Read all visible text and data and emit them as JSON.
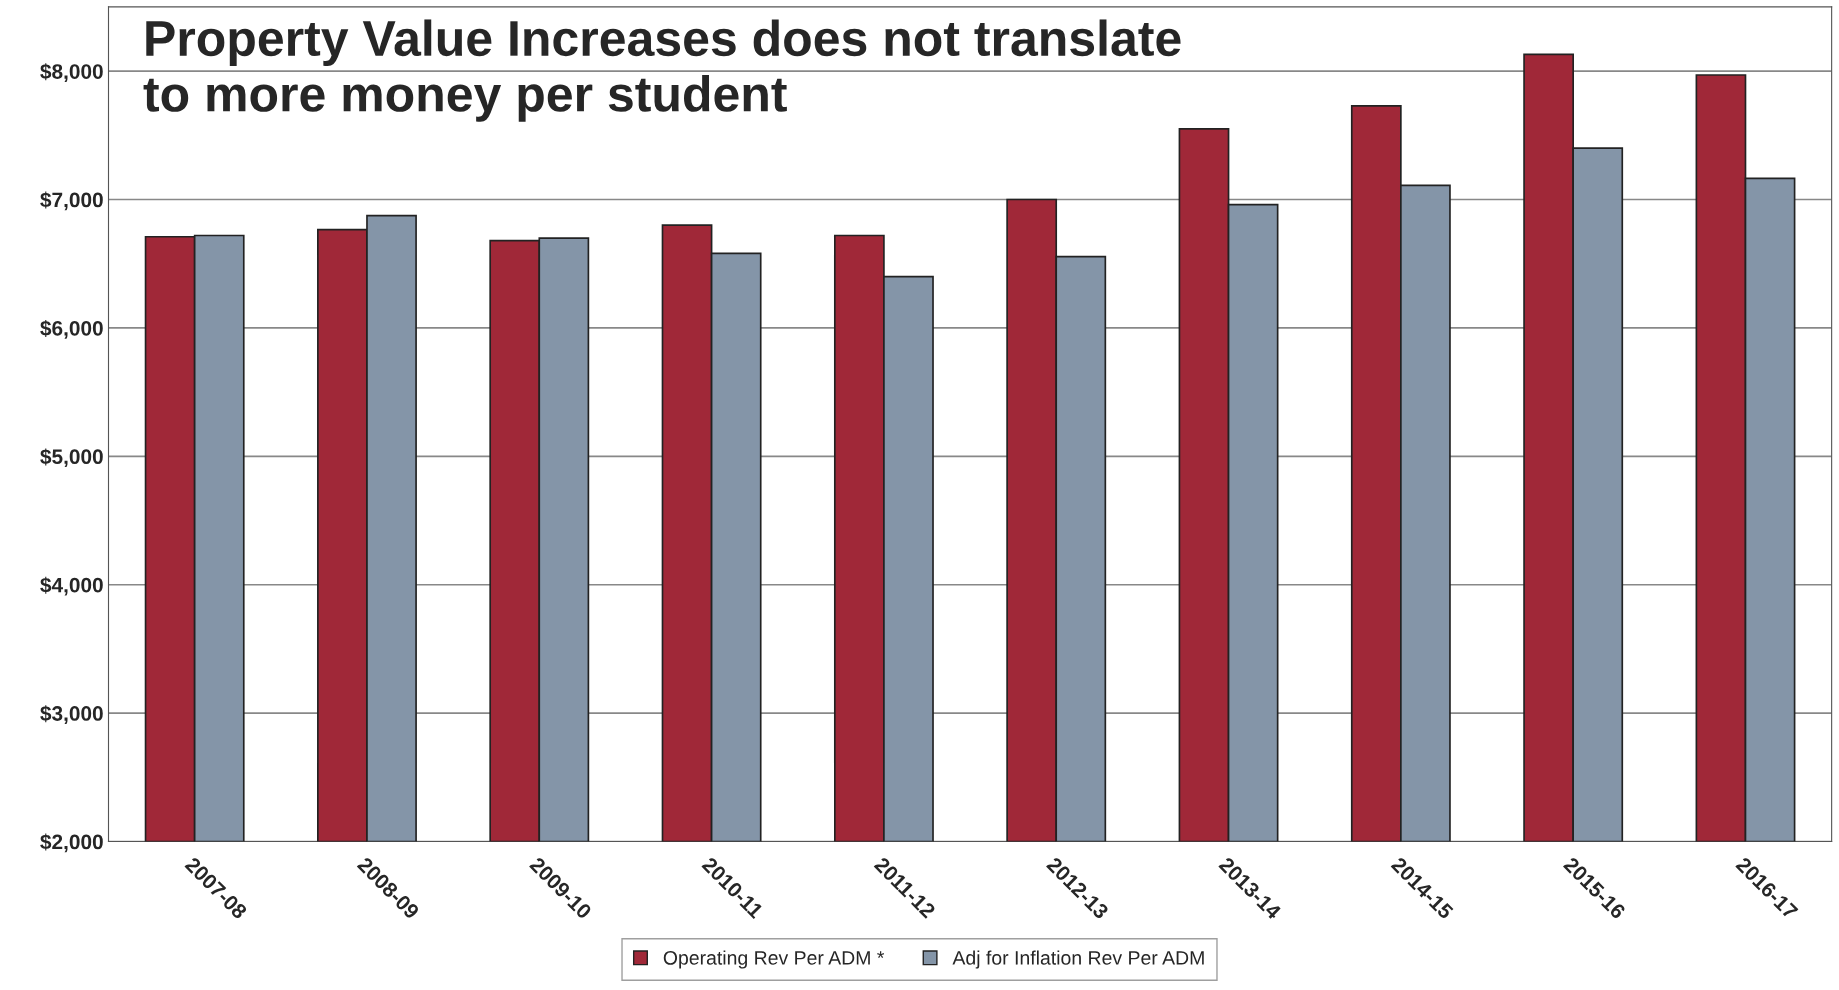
{
  "chart_data": {
    "type": "bar",
    "title": "Property Value Increases does not translate to more money per student",
    "categories": [
      "2007-08",
      "2008-09",
      "2009-10",
      "2010-11",
      "2011-12",
      "2012-13",
      "2013-14",
      "2014-15",
      "2015-16",
      "2016-17"
    ],
    "series": [
      {
        "name": "Operating Rev Per ADM *",
        "color": "#a02838",
        "values": [
          6710,
          6765,
          6680,
          6800,
          6720,
          7000,
          7550,
          7730,
          8130,
          7970
        ]
      },
      {
        "name": "Adj for Inflation Rev Per ADM",
        "color": "#8495a8",
        "values": [
          6720,
          6875,
          6700,
          6580,
          6400,
          6555,
          6960,
          7110,
          7400,
          7165
        ]
      }
    ],
    "ylim": [
      2000,
      8500
    ],
    "yticks": [
      {
        "value": 2000,
        "label": "$2,000"
      },
      {
        "value": 3000,
        "label": "$3,000"
      },
      {
        "value": 4000,
        "label": "$4,000"
      },
      {
        "value": 5000,
        "label": "$5,000"
      },
      {
        "value": 6000,
        "label": "$6,000"
      },
      {
        "value": 7000,
        "label": "$7,000"
      },
      {
        "value": 8000,
        "label": "$8,000"
      }
    ],
    "grid": "y",
    "legend": "bottom"
  }
}
